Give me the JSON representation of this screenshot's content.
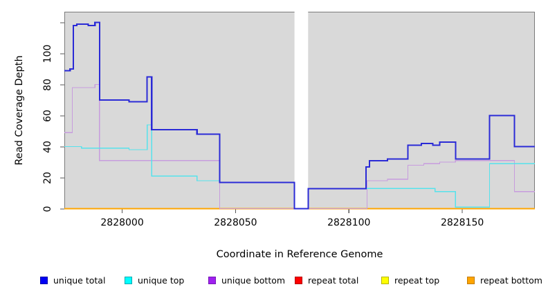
{
  "y_axis": {
    "title": "Read Coverage Depth",
    "ticks": [
      {
        "value": 0,
        "label": "0"
      },
      {
        "value": 20,
        "label": "20"
      },
      {
        "value": 40,
        "label": "40"
      },
      {
        "value": 60,
        "label": "60"
      },
      {
        "value": 80,
        "label": "80"
      },
      {
        "value": 100,
        "label": "100"
      },
      {
        "value": 120,
        "label": ""
      }
    ]
  },
  "x_axis": {
    "title": "Coordinate in Reference Genome",
    "ticks": [
      {
        "value": 2828000,
        "label": "2828000"
      },
      {
        "value": 2828050,
        "label": "2828050"
      },
      {
        "value": 2828100,
        "label": "2828100"
      },
      {
        "value": 2828150,
        "label": "2828150"
      }
    ]
  },
  "chart_data": {
    "type": "line",
    "style": "step",
    "title": "",
    "xlabel": "Coordinate in Reference Genome",
    "ylabel": "Read Coverage Depth",
    "xlim": [
      2827974.5,
      2828182
    ],
    "ylim": [
      0,
      127
    ],
    "grid": false,
    "plot_bg": "#D9D9D9",
    "gap_region": {
      "from": 2828076,
      "to": 2828082
    },
    "series": [
      {
        "name": "repeat total",
        "color": "#FF2020",
        "width": 1.3,
        "points": [
          [
            2827974.5,
            0
          ]
        ]
      },
      {
        "name": "repeat top",
        "color": "#FFFF00",
        "width": 1.3,
        "points": [
          [
            2827974.5,
            0
          ]
        ]
      },
      {
        "name": "repeat bottom",
        "color": "#FFA500",
        "width": 1.7,
        "points": [
          [
            2827974.5,
            0
          ]
        ]
      },
      {
        "name": "unique bottom",
        "color": "#C79CDE",
        "width": 1.3,
        "points": [
          [
            2827974.5,
            49
          ],
          [
            2827978,
            78
          ],
          [
            2827988,
            80
          ],
          [
            2827990,
            31
          ],
          [
            2828043,
            0
          ],
          [
            2828108,
            18
          ],
          [
            2828117,
            19
          ],
          [
            2828126,
            28
          ],
          [
            2828133,
            29
          ],
          [
            2828140,
            30
          ],
          [
            2828147,
            31
          ],
          [
            2828173,
            11
          ]
        ]
      },
      {
        "name": "unique top",
        "color": "#55E2EC",
        "width": 1.3,
        "points": [
          [
            2827974.5,
            40
          ],
          [
            2827982,
            39
          ],
          [
            2828003,
            38
          ],
          [
            2828011,
            54
          ],
          [
            2828013,
            21
          ],
          [
            2828033,
            18
          ],
          [
            2828043,
            17
          ],
          [
            2828076,
            0
          ],
          [
            2828082,
            13
          ],
          [
            2828138,
            11
          ],
          [
            2828147,
            1
          ],
          [
            2828162,
            29
          ]
        ]
      },
      {
        "name": "unique total",
        "color": "#2A2AD6",
        "width": 2.1,
        "points": [
          [
            2827974.5,
            89
          ],
          [
            2827977,
            90
          ],
          [
            2827978.5,
            118
          ],
          [
            2827980,
            119
          ],
          [
            2827985,
            118
          ],
          [
            2827988,
            120
          ],
          [
            2827990,
            70
          ],
          [
            2828003,
            69
          ],
          [
            2828011,
            85
          ],
          [
            2828013,
            51
          ],
          [
            2828033,
            48
          ],
          [
            2828043,
            17
          ],
          [
            2828076,
            0
          ],
          [
            2828082,
            13
          ],
          [
            2828107.5,
            27
          ],
          [
            2828109,
            31
          ],
          [
            2828117,
            32
          ],
          [
            2828126,
            41
          ],
          [
            2828132,
            42
          ],
          [
            2828137,
            41
          ],
          [
            2828140,
            43
          ],
          [
            2828147,
            32
          ],
          [
            2828162,
            60
          ],
          [
            2828173,
            40
          ]
        ]
      }
    ]
  },
  "legend": {
    "items": [
      {
        "label": "unique total",
        "fill": "#0000F5",
        "border": "#0000A8"
      },
      {
        "label": "unique top",
        "fill": "#00FFFF",
        "border": "#00A8B0"
      },
      {
        "label": "unique bottom",
        "fill": "#A020F0",
        "border": "#7517B6"
      },
      {
        "label": "repeat total",
        "fill": "#FF0000",
        "border": "#B40000"
      },
      {
        "label": "repeat top",
        "fill": "#FFFF00",
        "border": "#B4B400"
      },
      {
        "label": "repeat bottom",
        "fill": "#FFA500",
        "border": "#C27A00"
      }
    ]
  }
}
